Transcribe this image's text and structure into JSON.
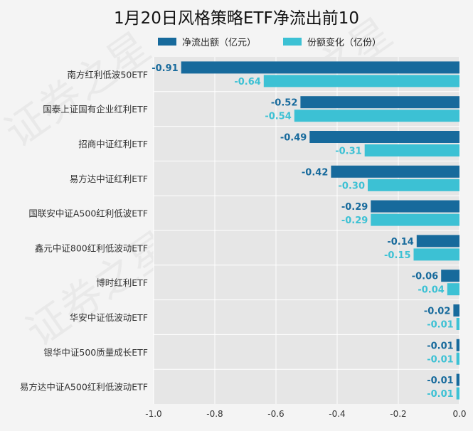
{
  "colors": {
    "net": "#176a9c",
    "share": "#3cc1d4",
    "plot_bg": "#e6e6e6",
    "grid": "#ffffff"
  },
  "watermark": "证券之星",
  "chart_data": {
    "type": "bar",
    "orientation": "horizontal",
    "title": "1月20日风格策略ETF净流出前10",
    "categories": [
      "南方红利低波50ETF",
      "国泰上证国有企业红利ETF",
      "招商中证红利ETF",
      "易方达中证红利ETF",
      "国联安中证A500红利低波ETF",
      "鑫元中证800红利低波动ETF",
      "博时红利ETF",
      "华安中证低波动ETF",
      "银华中证500质量成长ETF",
      "易方达中证A500红利低波动ETF"
    ],
    "series": [
      {
        "name": "净流出额（亿元）",
        "values": [
          -0.91,
          -0.52,
          -0.49,
          -0.42,
          -0.29,
          -0.14,
          -0.06,
          -0.02,
          -0.01,
          -0.01
        ],
        "labels": [
          "-0.91",
          "-0.52",
          "-0.49",
          "-0.42",
          "-0.29",
          "-0.14",
          "-0.06",
          "-0.02",
          "-0.01",
          "-0.01"
        ]
      },
      {
        "name": "份额变化（亿份）",
        "values": [
          -0.64,
          -0.54,
          -0.31,
          -0.3,
          -0.29,
          -0.15,
          -0.04,
          -0.01,
          -0.01,
          -0.01
        ],
        "labels": [
          "-0.64",
          "-0.54",
          "-0.31",
          "-0.30",
          "-0.29",
          "-0.15",
          "-0.04",
          "-0.01",
          "-0.01",
          "-0.01"
        ]
      }
    ],
    "xlim": [
      -1.0,
      0.0
    ],
    "xticks": [
      -1.0,
      -0.8,
      -0.6,
      -0.4,
      -0.2,
      0.0
    ],
    "xtick_labels": [
      "-1.0",
      "-0.8",
      "-0.6",
      "-0.4",
      "-0.2",
      "0.0"
    ],
    "xlabel": "",
    "ylabel": "",
    "grid": true,
    "legend": "top"
  }
}
